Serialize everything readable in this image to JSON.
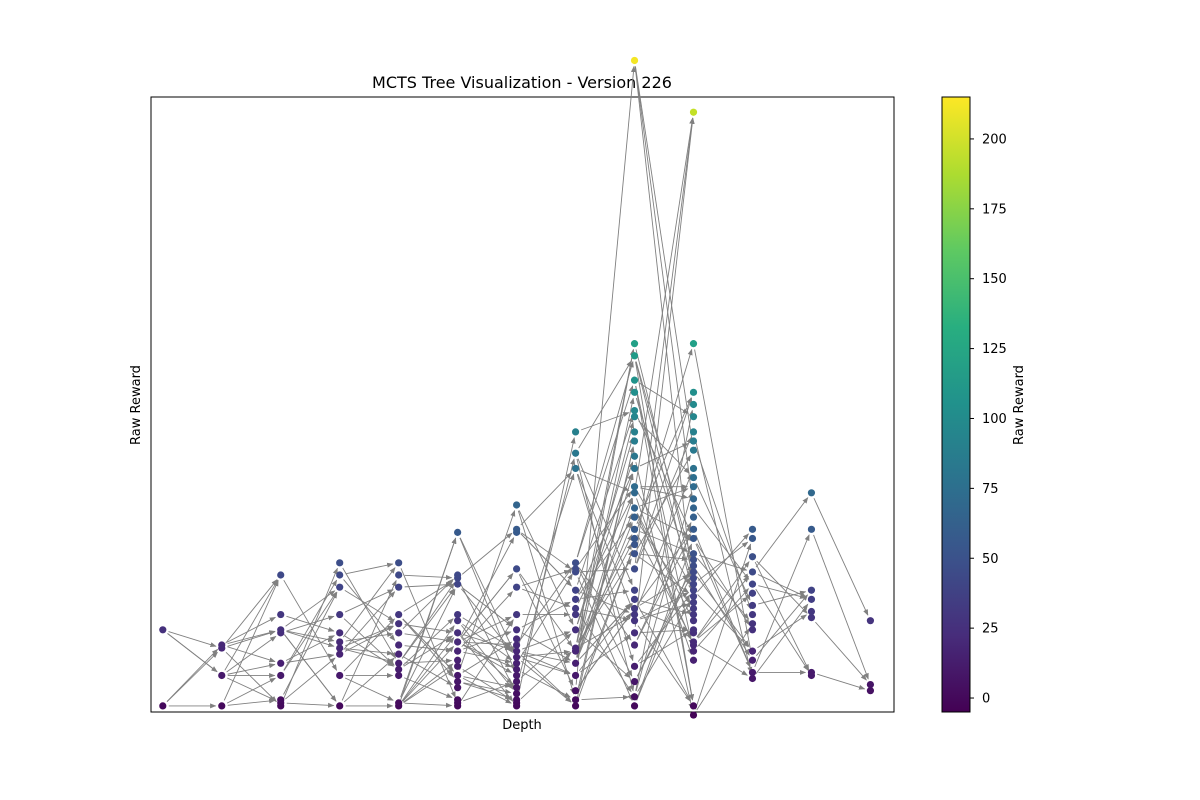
{
  "chart_data": {
    "type": "scatter",
    "title": "MCTS Tree Visualization - Version 226",
    "xlabel": "Depth",
    "ylabel": "Raw Reward",
    "x_ticks_shown": false,
    "y_ticks_shown": false,
    "grid": false,
    "xlim": [
      -0.2,
      12.4
    ],
    "ylim": [
      -2,
      200
    ],
    "edge_color": "#808080",
    "colormap": "viridis",
    "colorbar": {
      "label": "Raw Reward",
      "min": -5,
      "max": 215,
      "ticks": [
        0,
        25,
        50,
        75,
        100,
        125,
        150,
        175,
        200
      ],
      "tick_labels": [
        "0",
        "25",
        "50",
        "75",
        "100",
        "125",
        "150",
        "175",
        "200"
      ]
    },
    "nodes": [
      {
        "depth": 0,
        "rewards": [
          0,
          25
        ]
      },
      {
        "depth": 1,
        "rewards": [
          0,
          10,
          19,
          20
        ]
      },
      {
        "depth": 2,
        "rewards": [
          0,
          1,
          2,
          10,
          14,
          24,
          25,
          30,
          43
        ]
      },
      {
        "depth": 3,
        "rewards": [
          0,
          10,
          17,
          19,
          21,
          24,
          30,
          39,
          43,
          47
        ]
      },
      {
        "depth": 4,
        "rewards": [
          0,
          1,
          10,
          12,
          14,
          17,
          20,
          24,
          27,
          30,
          39,
          43,
          47
        ]
      },
      {
        "depth": 5,
        "rewards": [
          0,
          1,
          2,
          6,
          8,
          10,
          13,
          15,
          18,
          21,
          24,
          28,
          30,
          40,
          42,
          43,
          57
        ]
      },
      {
        "depth": 6,
        "rewards": [
          0,
          1,
          2,
          4,
          6,
          8,
          10,
          12,
          14,
          16,
          18,
          20,
          22,
          25,
          30,
          39,
          45,
          57,
          58,
          66
        ]
      },
      {
        "depth": 7,
        "rewards": [
          0,
          2,
          5,
          10,
          14,
          18,
          19,
          25,
          30,
          32,
          35,
          38,
          44,
          45,
          47,
          78,
          83,
          90
        ]
      },
      {
        "depth": 8,
        "rewards": [
          0,
          3,
          8,
          13,
          20,
          24,
          28,
          30,
          32,
          35,
          38,
          45,
          50,
          53,
          55,
          58,
          62,
          65,
          70,
          72,
          78,
          82,
          87,
          90,
          95,
          97,
          103,
          107,
          115,
          119,
          212
        ]
      },
      {
        "depth": 9,
        "rewards": [
          -3,
          0,
          15,
          18,
          20,
          21,
          24,
          25,
          28,
          30,
          32,
          34,
          36,
          38,
          40,
          42,
          44,
          46,
          48,
          50,
          55,
          58,
          62,
          65,
          68,
          72,
          75,
          78,
          84,
          87,
          90,
          95,
          99,
          103,
          119,
          195
        ]
      },
      {
        "depth": 10,
        "rewards": [
          9,
          11,
          15,
          18,
          25,
          27,
          30,
          33,
          37,
          40,
          44,
          49,
          55,
          58
        ]
      },
      {
        "depth": 11,
        "rewards": [
          10,
          11,
          29,
          31,
          35,
          38,
          58,
          70
        ]
      },
      {
        "depth": 12,
        "rewards": [
          5,
          7,
          28
        ]
      }
    ]
  }
}
